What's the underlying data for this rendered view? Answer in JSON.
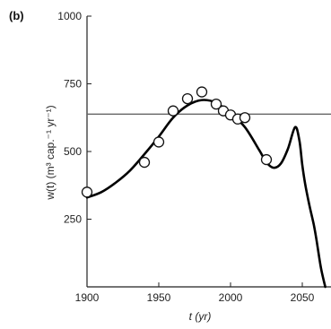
{
  "chart_data": {
    "type": "line",
    "panel_label": "(b)",
    "title": "",
    "xlabel": "t (yr)",
    "ylabel": "w(t) (m³ cap.⁻¹ yr⁻¹)",
    "xlim": [
      1900,
      2070
    ],
    "ylim": [
      0,
      1000
    ],
    "x_ticks": [
      1900,
      1950,
      2000,
      2050
    ],
    "y_ticks": [
      250,
      500,
      750,
      1000
    ],
    "grid": false,
    "legend": "none",
    "reference_line_y": 638,
    "series": [
      {
        "kind": "scatter",
        "x": [
          1900,
          1940,
          1950,
          1960,
          1970,
          1980,
          1990,
          1995,
          2000,
          2005,
          2010,
          2025
        ],
        "y": [
          350,
          460,
          535,
          650,
          695,
          720,
          675,
          650,
          635,
          620,
          625,
          470
        ]
      },
      {
        "kind": "line",
        "x": [
          1900,
          1910,
          1920,
          1930,
          1940,
          1950,
          1960,
          1970,
          1980,
          1990,
          2000,
          2010,
          2020,
          2025,
          2030,
          2035,
          2040,
          2045,
          2048,
          2050,
          2052,
          2055,
          2058,
          2060,
          2063,
          2066
        ],
        "y": [
          330,
          350,
          385,
          430,
          490,
          555,
          625,
          670,
          690,
          680,
          640,
          590,
          505,
          460,
          440,
          455,
          510,
          590,
          540,
          450,
          380,
          300,
          230,
          170,
          70,
          0
        ]
      }
    ]
  }
}
